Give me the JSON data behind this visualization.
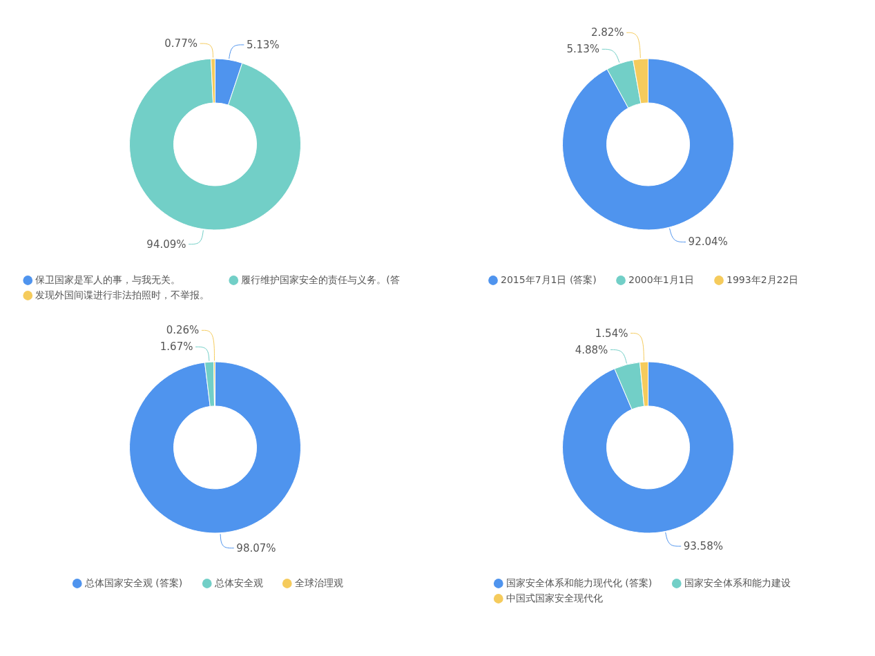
{
  "chart_data": [
    {
      "type": "donut",
      "categories": [
        "保卫国家是军人的事，与我无关。",
        "履行维护国家安全的责任与义务。(答",
        "发现外国间谍进行非法拍照时，不举报。"
      ],
      "values": [
        5.13,
        94.09,
        0.77
      ],
      "colors": [
        "#4f94ee",
        "#72cfc7",
        "#f5cb5c"
      ],
      "value_labels": [
        "5.13%",
        "94.09%",
        "0.77%"
      ],
      "legend": "bottom"
    },
    {
      "type": "donut",
      "categories": [
        "2015年7月1日 (答案)",
        "2000年1月1日",
        "1993年2月22日"
      ],
      "values": [
        92.04,
        5.13,
        2.82
      ],
      "colors": [
        "#4f94ee",
        "#72cfc7",
        "#f5cb5c"
      ],
      "value_labels": [
        "92.04%",
        "5.13%",
        "2.82%"
      ],
      "legend": "bottom"
    },
    {
      "type": "donut",
      "categories": [
        "总体国家安全观 (答案)",
        "总体安全观",
        "全球治理观"
      ],
      "values": [
        98.07,
        1.67,
        0.26
      ],
      "colors": [
        "#4f94ee",
        "#72cfc7",
        "#f5cb5c"
      ],
      "value_labels": [
        "98.07%",
        "1.67%",
        "0.26%"
      ],
      "legend": "bottom"
    },
    {
      "type": "donut",
      "categories": [
        "国家安全体系和能力现代化 (答案)",
        "国家安全体系和能力建设",
        "中国式国家安全现代化"
      ],
      "values": [
        93.58,
        4.88,
        1.54
      ],
      "colors": [
        "#4f94ee",
        "#72cfc7",
        "#f5cb5c"
      ],
      "value_labels": [
        "93.58%",
        "4.88%",
        "1.54%"
      ],
      "legend": "bottom"
    }
  ]
}
